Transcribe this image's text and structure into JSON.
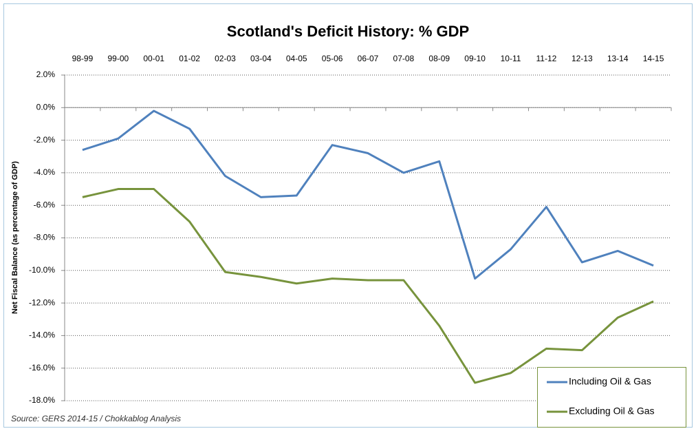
{
  "chart_data": {
    "type": "line",
    "title": "Scotland's Deficit History: % GDP",
    "y_label": "Net Fiscal Balance  (as percentage of GDP)",
    "source": "Source: GERS 2014-15 / Chokkablog Analysis",
    "categories": [
      "98-99",
      "99-00",
      "00-01",
      "01-02",
      "02-03",
      "03-04",
      "04-05",
      "05-06",
      "06-07",
      "07-08",
      "08-09",
      "09-10",
      "10-11",
      "11-12",
      "12-13",
      "13-14",
      "14-15"
    ],
    "series": [
      {
        "name": "Including Oil & Gas",
        "color": "#4f81bd",
        "values": [
          -2.6,
          -1.9,
          -0.2,
          -1.3,
          -4.2,
          -5.5,
          -5.4,
          -2.3,
          -2.8,
          -4.0,
          -3.3,
          -10.5,
          -8.7,
          -6.1,
          -9.5,
          -8.8,
          -9.7
        ]
      },
      {
        "name": "Excluding Oil & Gas",
        "color": "#77933c",
        "values": [
          -5.5,
          -5.0,
          -5.0,
          -7.0,
          -10.1,
          -10.4,
          -10.8,
          -10.5,
          -10.6,
          -10.6,
          -13.4,
          -16.9,
          -16.3,
          -14.8,
          -14.9,
          -12.9,
          -11.9
        ]
      }
    ],
    "ylim": [
      -18,
      2
    ],
    "yticks": [
      {
        "value": 2,
        "label": "2.0%"
      },
      {
        "value": 0,
        "label": "0.0%"
      },
      {
        "value": -2,
        "label": "-2.0%"
      },
      {
        "value": -4,
        "label": "-4.0%"
      },
      {
        "value": -6,
        "label": "-6.0%"
      },
      {
        "value": -8,
        "label": "-8.0%"
      },
      {
        "value": -10,
        "label": "-10.0%"
      },
      {
        "value": -12,
        "label": "-12.0%"
      },
      {
        "value": -14,
        "label": "-14.0%"
      },
      {
        "value": -16,
        "label": "-16.0%"
      },
      {
        "value": -18,
        "label": "-18.0%"
      }
    ],
    "grid": true,
    "legend": "lower right"
  }
}
